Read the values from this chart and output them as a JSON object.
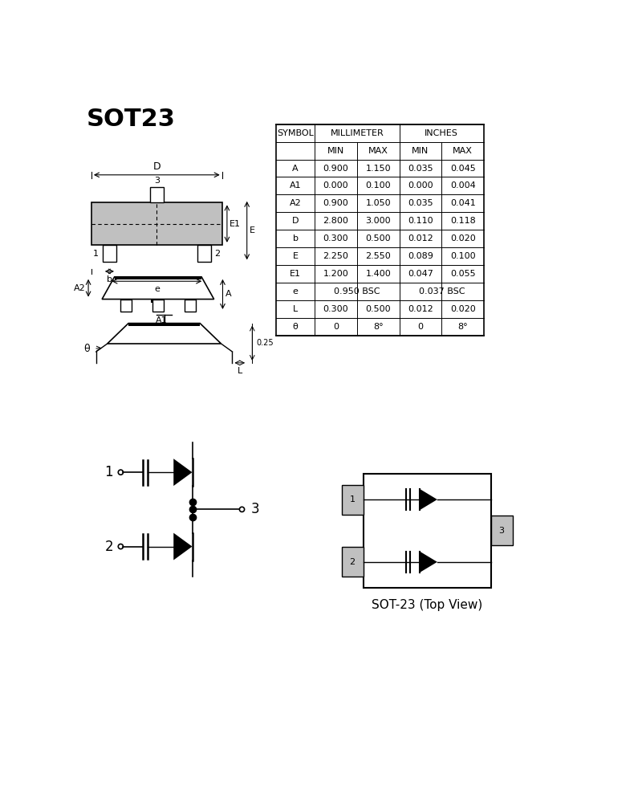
{
  "title": "SOT23",
  "bg_color": "#ffffff",
  "line_color": "#000000",
  "gray_fill": "#c0c0c0",
  "table": {
    "rows": [
      [
        "A",
        "0.900",
        "1.150",
        "0.035",
        "0.045"
      ],
      [
        "A1",
        "0.000",
        "0.100",
        "0.000",
        "0.004"
      ],
      [
        "A2",
        "0.900",
        "1.050",
        "0.035",
        "0.041"
      ],
      [
        "D",
        "2.800",
        "3.000",
        "0.110",
        "0.118"
      ],
      [
        "b",
        "0.300",
        "0.500",
        "0.012",
        "0.020"
      ],
      [
        "E",
        "2.250",
        "2.550",
        "0.089",
        "0.100"
      ],
      [
        "E1",
        "1.200",
        "1.400",
        "0.047",
        "0.055"
      ],
      [
        "e",
        "0.950 BSC",
        "",
        "0.037 BSC",
        ""
      ],
      [
        "L",
        "0.300",
        "0.500",
        "0.012",
        "0.020"
      ],
      [
        "θ",
        "0",
        "8°",
        "0",
        "8°"
      ]
    ]
  },
  "top_label": "SOT-23 (Top View)"
}
